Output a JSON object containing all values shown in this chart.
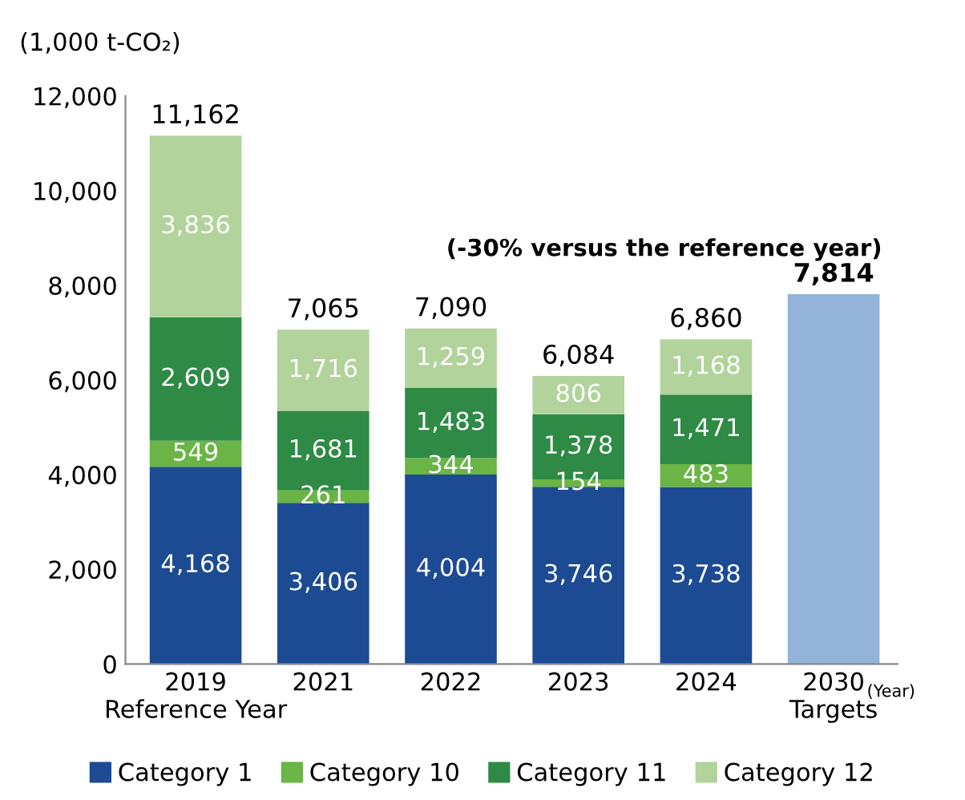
{
  "chart_data": {
    "type": "bar",
    "stacked": true,
    "ylabel": "(1,000 t-CO₂)",
    "categories": [
      "2019\nReference Year",
      "2021",
      "2022",
      "2023",
      "2024",
      "2030\nTargets"
    ],
    "series": [
      {
        "name": "Category 1",
        "color": "#1d4b93",
        "values": [
          4168,
          3406,
          4004,
          3746,
          3738,
          null
        ],
        "value_labels": [
          "4,168",
          "3,406",
          "4,004",
          "3,746",
          "3,738",
          null
        ]
      },
      {
        "name": "Category 10",
        "color": "#6ab545",
        "values": [
          549,
          261,
          344,
          154,
          483,
          null
        ],
        "value_labels": [
          "549",
          "261",
          "344",
          "154",
          "483",
          null
        ]
      },
      {
        "name": "Category 11",
        "color": "#2e8a45",
        "values": [
          2609,
          1681,
          1483,
          1378,
          1471,
          null
        ],
        "value_labels": [
          "2,609",
          "1,681",
          "1,483",
          "1,378",
          "1,471",
          null
        ]
      },
      {
        "name": "Category 12",
        "color": "#b2d39c",
        "values": [
          3836,
          1716,
          1259,
          806,
          1168,
          null
        ],
        "value_labels": [
          "3,836",
          "1,716",
          "1,259",
          "806",
          "1,168",
          null
        ]
      },
      {
        "color": "#93b3d9",
        "values": [
          null,
          null,
          null,
          null,
          null,
          7814
        ]
      }
    ],
    "totals": [
      "11,162",
      "7,065",
      "7,090",
      "6,084",
      "6,860",
      "7,814"
    ],
    "annotations": [
      "(-30% versus the reference year)",
      "(Year)"
    ],
    "ylim": [
      0,
      12000
    ],
    "yticks": [
      {
        "value": 0,
        "label": "0"
      },
      {
        "value": 2000,
        "label": "2,000"
      },
      {
        "value": 4000,
        "label": "4,000"
      },
      {
        "value": 6000,
        "label": "6,000"
      },
      {
        "value": 8000,
        "label": "8,000"
      },
      {
        "value": 10000,
        "label": "10,000"
      },
      {
        "value": 12000,
        "label": "12,000"
      }
    ],
    "grid": false,
    "legend": "bottom"
  }
}
